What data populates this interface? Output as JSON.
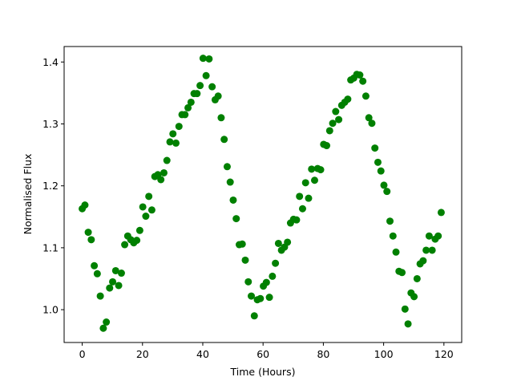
{
  "chart_data": {
    "type": "scatter",
    "title": "",
    "xlabel": "Time (Hours)",
    "ylabel": "Normalised Flux",
    "xlim": [
      -6,
      125.9
    ],
    "ylim": [
      0.947,
      1.425
    ],
    "xticks": [
      0,
      20,
      40,
      60,
      80,
      100,
      120
    ],
    "xtick_labels": [
      "0",
      "20",
      "40",
      "60",
      "80",
      "100",
      "120"
    ],
    "yticks": [
      1.0,
      1.1,
      1.2,
      1.3,
      1.4
    ],
    "ytick_labels": [
      "1.0",
      "1.1",
      "1.2",
      "1.3",
      "1.4"
    ],
    "grid": false,
    "marker_color": "#008000",
    "series": [
      {
        "x": [
          0.0,
          0.9,
          2.0,
          3.0,
          4.0,
          5.0,
          6.0,
          7.0,
          8.0,
          9.1,
          10.1,
          11.1,
          12.1,
          13.0,
          14.1,
          15.1,
          16.1,
          17.1,
          18.1,
          19.1,
          20.1,
          21.1,
          22.1,
          23.1,
          24.1,
          25.1,
          26.1,
          27.1,
          28.1,
          29.1,
          30.1,
          31.1,
          32.1,
          33.1,
          34.1,
          35.1,
          36.1,
          37.1,
          38.1,
          39.1,
          40.1,
          41.1,
          42.1,
          43.1,
          44.1,
          45.1,
          46.1,
          47.1,
          48.1,
          49.1,
          50.1,
          51.1,
          52.1,
          53.1,
          54.1,
          55.1,
          56.1,
          57.1,
          58.1,
          59.1,
          60.1,
          61.1,
          62.1,
          63.1,
          64.1,
          65.1,
          66.1,
          67.1,
          68.1,
          69.1,
          70.1,
          71.1,
          72.1,
          73.1,
          74.1,
          75.1,
          76.1,
          77.1,
          78.1,
          79.1,
          80.1,
          81.1,
          82.1,
          83.1,
          84.1,
          85.1,
          86.1,
          87.1,
          88.1,
          89.1,
          90.1,
          91.1,
          92.1,
          93.1,
          94.1,
          95.1,
          96.1,
          97.1,
          98.1,
          99.1,
          100.1,
          101.1,
          102.1,
          103.1,
          104.1,
          105.1,
          106.1,
          107.1,
          108.1,
          109.1,
          110.1,
          111.1,
          112.1,
          113.1,
          114.1,
          115.1,
          116.1,
          117.1,
          118.1,
          119.1
        ],
        "y": [
          1.163,
          1.169,
          1.125,
          1.113,
          1.071,
          1.058,
          1.022,
          0.97,
          0.98,
          1.035,
          1.045,
          1.063,
          1.039,
          1.059,
          1.105,
          1.119,
          1.113,
          1.108,
          1.112,
          1.128,
          1.166,
          1.151,
          1.183,
          1.161,
          1.215,
          1.218,
          1.21,
          1.221,
          1.241,
          1.271,
          1.284,
          1.269,
          1.296,
          1.315,
          1.315,
          1.326,
          1.335,
          1.349,
          1.349,
          1.362,
          1.406,
          1.378,
          1.405,
          1.36,
          1.339,
          1.345,
          1.31,
          1.275,
          1.231,
          1.206,
          1.177,
          1.147,
          1.105,
          1.106,
          1.08,
          1.045,
          1.022,
          0.99,
          1.016,
          1.018,
          1.038,
          1.044,
          1.02,
          1.054,
          1.075,
          1.107,
          1.096,
          1.101,
          1.109,
          1.14,
          1.146,
          1.145,
          1.183,
          1.163,
          1.205,
          1.18,
          1.227,
          1.209,
          1.228,
          1.226,
          1.267,
          1.265,
          1.289,
          1.301,
          1.32,
          1.307,
          1.33,
          1.335,
          1.34,
          1.371,
          1.374,
          1.38,
          1.379,
          1.369,
          1.345,
          1.31,
          1.301,
          1.261,
          1.238,
          1.224,
          1.201,
          1.191,
          1.143,
          1.119,
          1.093,
          1.062,
          1.06,
          1.001,
          0.977,
          1.027,
          1.021,
          1.05,
          1.074,
          1.079,
          1.096,
          1.119,
          1.096,
          1.114,
          1.119,
          1.157
        ]
      }
    ]
  }
}
